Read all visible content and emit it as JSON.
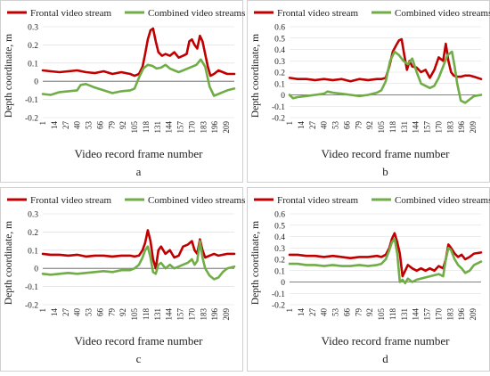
{
  "colors": {
    "frontal": "#c00000",
    "combined": "#70ad47",
    "axis": "#595959",
    "grid": "#d9d9d9",
    "panel_border": "#d0d0d0"
  },
  "legend": {
    "frontal": "Frontal video stream",
    "combined": "Combined video streams"
  },
  "chart_data": [
    {
      "type": "line",
      "panel_label": "a",
      "xlabel": "Video record frame number",
      "ylabel": "Depth coordinate, m",
      "ylim": [
        -0.2,
        0.3
      ],
      "y_ticks": [
        -0.2,
        -0.1,
        0,
        0.1,
        0.2,
        0.3
      ],
      "x_ticks": [
        1,
        14,
        27,
        40,
        53,
        66,
        79,
        92,
        105,
        118,
        131,
        144,
        157,
        170,
        183,
        196,
        209
      ],
      "xlim": [
        1,
        218
      ],
      "legend_position": "top",
      "grid": true,
      "series": [
        {
          "name": "Frontal video stream",
          "color": "#c00000",
          "x": [
            1,
            10,
            20,
            30,
            40,
            50,
            60,
            70,
            80,
            90,
            100,
            105,
            110,
            114,
            117,
            120,
            123,
            126,
            129,
            132,
            136,
            140,
            145,
            150,
            155,
            160,
            164,
            167,
            170,
            173,
            176,
            179,
            182,
            185,
            188,
            191,
            195,
            200,
            205,
            210,
            218
          ],
          "y": [
            0.06,
            0.055,
            0.05,
            0.055,
            0.06,
            0.05,
            0.045,
            0.055,
            0.04,
            0.05,
            0.04,
            0.03,
            0.04,
            0.08,
            0.15,
            0.23,
            0.28,
            0.29,
            0.22,
            0.16,
            0.14,
            0.15,
            0.14,
            0.16,
            0.13,
            0.14,
            0.15,
            0.22,
            0.23,
            0.2,
            0.18,
            0.25,
            0.22,
            0.15,
            0.08,
            0.03,
            0.04,
            0.06,
            0.05,
            0.04,
            0.04
          ]
        },
        {
          "name": "Combined video streams",
          "color": "#70ad47",
          "x": [
            1,
            10,
            20,
            30,
            40,
            44,
            50,
            60,
            70,
            80,
            90,
            100,
            105,
            110,
            115,
            120,
            125,
            130,
            135,
            140,
            145,
            150,
            155,
            160,
            165,
            170,
            175,
            180,
            185,
            190,
            195,
            200,
            205,
            210,
            218
          ],
          "y": [
            -0.07,
            -0.075,
            -0.06,
            -0.055,
            -0.05,
            -0.02,
            -0.015,
            -0.035,
            -0.05,
            -0.065,
            -0.055,
            -0.05,
            -0.04,
            0.02,
            0.07,
            0.09,
            0.085,
            0.07,
            0.075,
            0.09,
            0.07,
            0.06,
            0.05,
            0.06,
            0.07,
            0.08,
            0.09,
            0.12,
            0.08,
            -0.03,
            -0.08,
            -0.07,
            -0.06,
            -0.05,
            -0.04
          ]
        }
      ]
    },
    {
      "type": "line",
      "panel_label": "b",
      "xlabel": "Video record frame number",
      "ylabel": "Depth coordinate, m",
      "ylim": [
        -0.2,
        0.6
      ],
      "y_ticks": [
        -0.2,
        -0.1,
        0,
        0.1,
        0.2,
        0.3,
        0.4,
        0.5,
        0.6
      ],
      "x_ticks": [
        1,
        14,
        27,
        40,
        53,
        66,
        79,
        92,
        105,
        118,
        131,
        144,
        157,
        170,
        183,
        196,
        209
      ],
      "xlim": [
        1,
        218
      ],
      "legend_position": "top",
      "grid": true,
      "series": [
        {
          "name": "Frontal video stream",
          "color": "#c00000",
          "x": [
            1,
            10,
            20,
            30,
            40,
            50,
            60,
            70,
            80,
            90,
            100,
            105,
            110,
            114,
            118,
            122,
            125,
            128,
            131,
            134,
            137,
            140,
            145,
            150,
            155,
            160,
            165,
            170,
            175,
            178,
            181,
            184,
            187,
            190,
            195,
            200,
            205,
            210,
            218
          ],
          "y": [
            0.15,
            0.14,
            0.14,
            0.13,
            0.14,
            0.13,
            0.14,
            0.12,
            0.14,
            0.13,
            0.14,
            0.14,
            0.15,
            0.25,
            0.38,
            0.44,
            0.48,
            0.49,
            0.35,
            0.22,
            0.3,
            0.25,
            0.24,
            0.2,
            0.22,
            0.15,
            0.22,
            0.33,
            0.3,
            0.45,
            0.3,
            0.2,
            0.17,
            0.16,
            0.16,
            0.17,
            0.17,
            0.16,
            0.14
          ]
        },
        {
          "name": "Combined video streams",
          "color": "#70ad47",
          "x": [
            1,
            5,
            10,
            20,
            30,
            40,
            44,
            50,
            60,
            70,
            80,
            90,
            100,
            105,
            110,
            115,
            120,
            125,
            130,
            135,
            140,
            145,
            150,
            155,
            160,
            165,
            170,
            175,
            180,
            185,
            188,
            191,
            195,
            200,
            205,
            210,
            218
          ],
          "y": [
            0.0,
            -0.03,
            -0.02,
            -0.01,
            0.0,
            0.01,
            0.03,
            0.02,
            0.01,
            0.0,
            -0.01,
            0.0,
            0.02,
            0.04,
            0.12,
            0.3,
            0.38,
            0.35,
            0.3,
            0.27,
            0.32,
            0.2,
            0.1,
            0.08,
            0.06,
            0.08,
            0.15,
            0.25,
            0.35,
            0.38,
            0.25,
            0.1,
            -0.05,
            -0.07,
            -0.04,
            -0.01,
            0.0
          ]
        }
      ]
    },
    {
      "type": "line",
      "panel_label": "c",
      "xlabel": "Video record frame number",
      "ylabel": "Depth coordinate, m",
      "ylim": [
        -0.2,
        0.3
      ],
      "y_ticks": [
        -0.2,
        -0.1,
        0,
        0.1,
        0.2,
        0.3
      ],
      "x_ticks": [
        1,
        14,
        27,
        40,
        53,
        66,
        79,
        92,
        105,
        118,
        131,
        144,
        157,
        170,
        183,
        196,
        209
      ],
      "xlim": [
        1,
        218
      ],
      "legend_position": "top",
      "grid": true,
      "series": [
        {
          "name": "Frontal video stream",
          "color": "#c00000",
          "x": [
            1,
            10,
            20,
            30,
            40,
            50,
            60,
            70,
            80,
            90,
            100,
            105,
            110,
            114,
            117,
            120,
            123,
            126,
            129,
            132,
            135,
            140,
            145,
            150,
            155,
            160,
            165,
            170,
            173,
            176,
            179,
            182,
            185,
            190,
            195,
            200,
            205,
            210,
            218
          ],
          "y": [
            0.08,
            0.075,
            0.075,
            0.07,
            0.075,
            0.065,
            0.07,
            0.07,
            0.065,
            0.07,
            0.07,
            0.065,
            0.07,
            0.1,
            0.14,
            0.21,
            0.15,
            0.05,
            0.0,
            0.1,
            0.12,
            0.08,
            0.1,
            0.06,
            0.07,
            0.12,
            0.13,
            0.15,
            0.1,
            0.08,
            0.16,
            0.1,
            0.06,
            0.07,
            0.08,
            0.07,
            0.075,
            0.08,
            0.08
          ]
        },
        {
          "name": "Combined video streams",
          "color": "#70ad47",
          "x": [
            1,
            10,
            20,
            30,
            40,
            50,
            60,
            70,
            80,
            90,
            100,
            105,
            110,
            114,
            117,
            120,
            123,
            126,
            129,
            132,
            135,
            140,
            145,
            150,
            155,
            160,
            165,
            170,
            173,
            176,
            179,
            182,
            185,
            190,
            195,
            200,
            205,
            210,
            218
          ],
          "y": [
            -0.03,
            -0.035,
            -0.03,
            -0.025,
            -0.03,
            -0.025,
            -0.02,
            -0.015,
            -0.02,
            -0.01,
            -0.01,
            0.0,
            0.02,
            0.06,
            0.1,
            0.12,
            0.06,
            -0.02,
            -0.03,
            0.02,
            0.03,
            0.0,
            0.02,
            0.0,
            0.01,
            0.02,
            0.03,
            0.05,
            0.02,
            0.04,
            0.15,
            0.06,
            0.0,
            -0.04,
            -0.06,
            -0.05,
            -0.02,
            0.0,
            0.01
          ]
        }
      ]
    },
    {
      "type": "line",
      "panel_label": "d",
      "xlabel": "Video record frame number",
      "ylabel": "Depth coordinate, m",
      "ylim": [
        -0.2,
        0.6
      ],
      "y_ticks": [
        -0.2,
        -0.1,
        0,
        0.1,
        0.2,
        0.3,
        0.4,
        0.5,
        0.6
      ],
      "x_ticks": [
        1,
        14,
        27,
        40,
        53,
        66,
        79,
        92,
        105,
        118,
        131,
        144,
        157,
        170,
        183,
        196,
        209
      ],
      "xlim": [
        1,
        218
      ],
      "legend_position": "top",
      "grid": true,
      "series": [
        {
          "name": "Frontal video stream",
          "color": "#c00000",
          "x": [
            1,
            10,
            20,
            30,
            40,
            50,
            60,
            70,
            80,
            90,
            100,
            105,
            110,
            114,
            117,
            120,
            123,
            126,
            129,
            132,
            135,
            140,
            145,
            150,
            155,
            160,
            165,
            170,
            175,
            178,
            181,
            184,
            188,
            192,
            196,
            200,
            205,
            210,
            218
          ],
          "y": [
            0.24,
            0.24,
            0.23,
            0.23,
            0.22,
            0.23,
            0.22,
            0.21,
            0.22,
            0.22,
            0.23,
            0.22,
            0.24,
            0.3,
            0.38,
            0.43,
            0.35,
            0.25,
            0.05,
            0.1,
            0.15,
            0.12,
            0.1,
            0.12,
            0.1,
            0.12,
            0.1,
            0.14,
            0.12,
            0.2,
            0.33,
            0.3,
            0.25,
            0.22,
            0.24,
            0.2,
            0.22,
            0.25,
            0.26
          ]
        },
        {
          "name": "Combined video streams",
          "color": "#70ad47",
          "x": [
            1,
            10,
            20,
            30,
            40,
            50,
            60,
            70,
            80,
            90,
            100,
            105,
            110,
            114,
            117,
            120,
            123,
            126,
            129,
            132,
            135,
            140,
            145,
            150,
            155,
            160,
            165,
            170,
            175,
            178,
            181,
            184,
            188,
            192,
            196,
            200,
            205,
            210,
            218
          ],
          "y": [
            0.16,
            0.16,
            0.15,
            0.15,
            0.14,
            0.15,
            0.14,
            0.14,
            0.15,
            0.14,
            0.15,
            0.16,
            0.2,
            0.28,
            0.35,
            0.38,
            0.25,
            0.0,
            0.02,
            -0.01,
            0.03,
            0.0,
            0.02,
            0.03,
            0.04,
            0.05,
            0.06,
            0.07,
            0.05,
            0.2,
            0.3,
            0.28,
            0.2,
            0.15,
            0.12,
            0.08,
            0.1,
            0.15,
            0.18
          ]
        }
      ]
    }
  ]
}
